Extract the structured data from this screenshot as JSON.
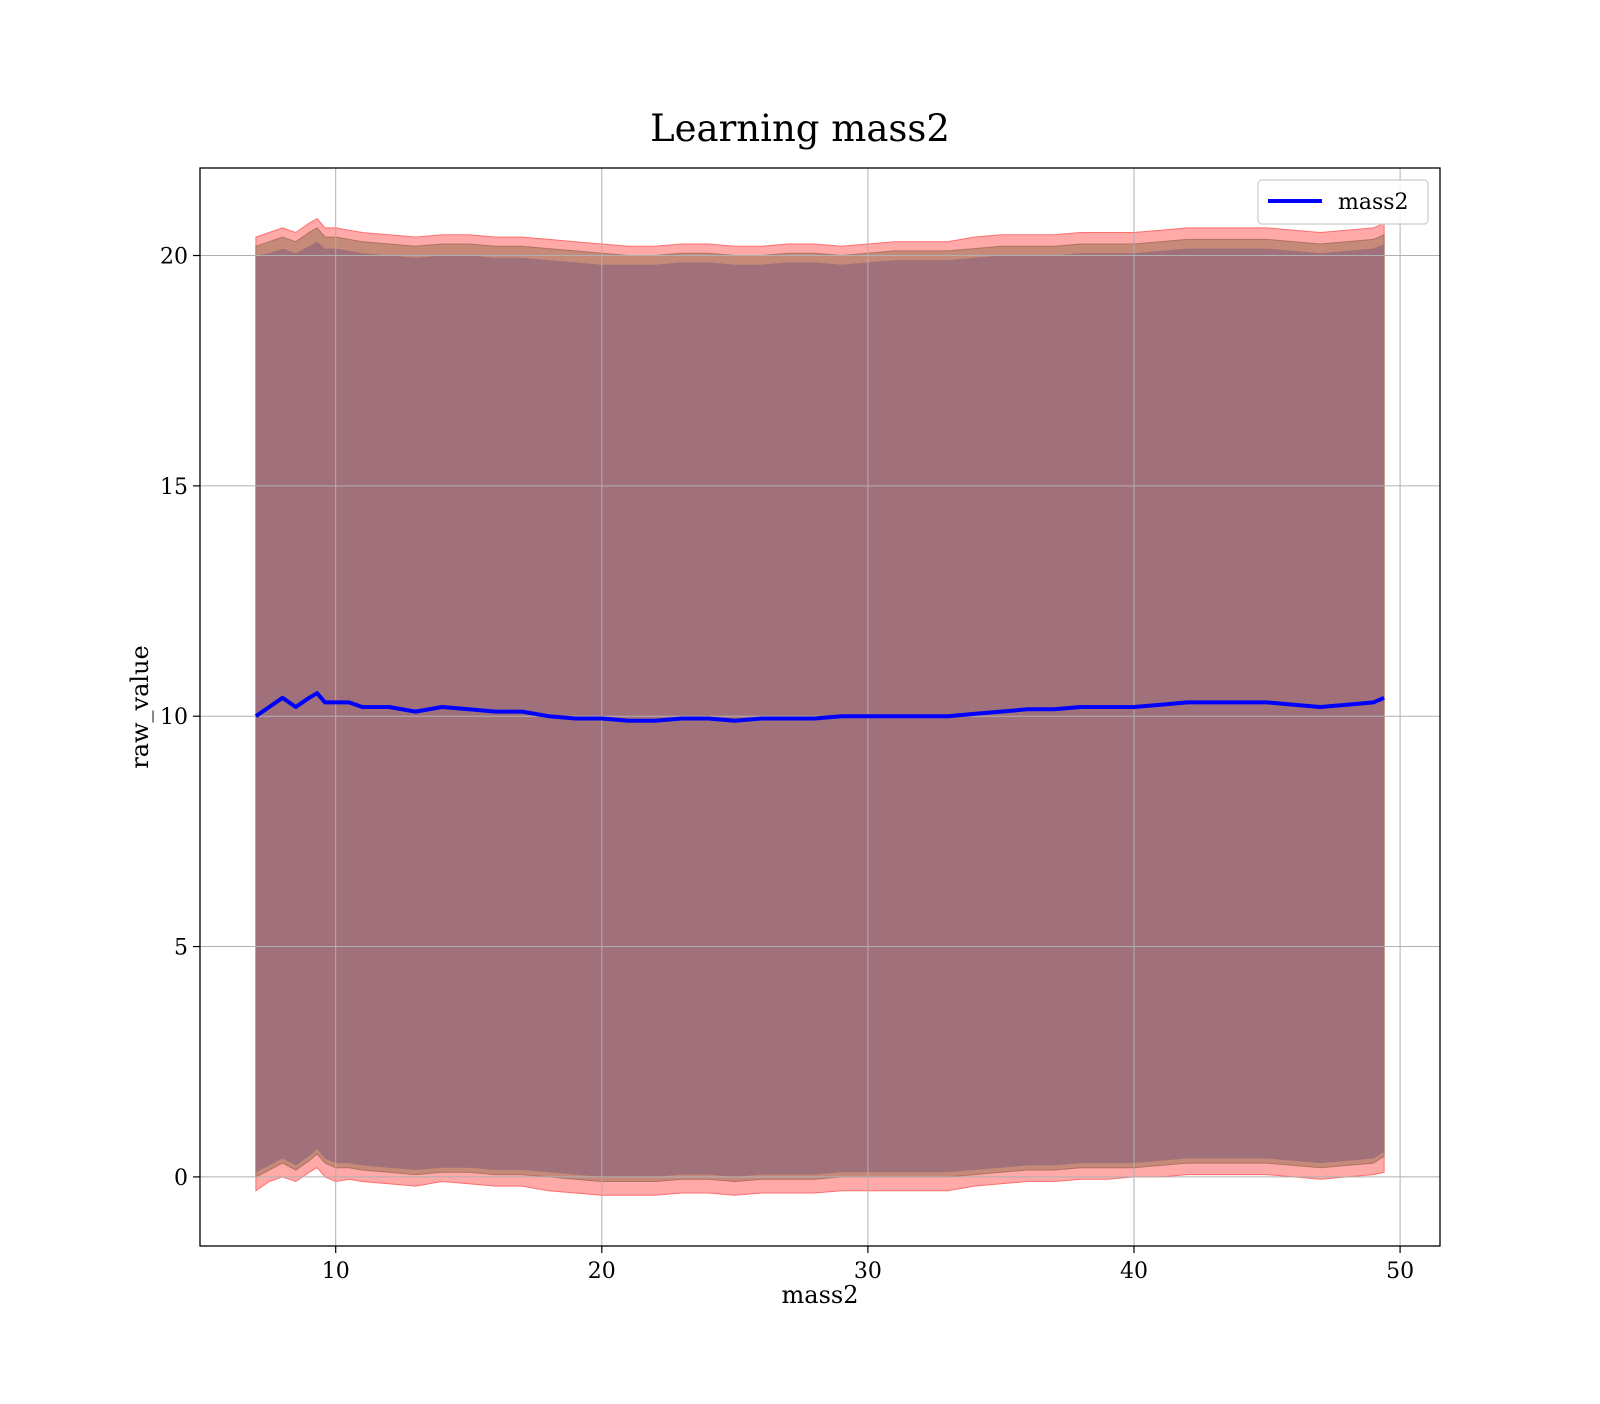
{
  "chart_data": {
    "type": "line",
    "title": "Learning mass2",
    "xlabel": "mass2",
    "ylabel": "raw_value",
    "xlim": [
      4.9,
      51.5
    ],
    "ylim": [
      -1.5,
      21.9
    ],
    "xticks": [
      10,
      20,
      30,
      40,
      50
    ],
    "yticks": [
      0,
      5,
      10,
      15,
      20
    ],
    "grid": true,
    "legend_position": "top-right",
    "colors": {
      "line": "#0000ff",
      "band_outer": "#ff9a9a",
      "band_mid": "#c58a78",
      "band_inner": "#a0717a",
      "grid": "#b0b0b0",
      "frame": "#000000"
    },
    "series": [
      {
        "name": "mass2",
        "x": [
          7.0,
          7.5,
          8.0,
          8.5,
          9.0,
          9.3,
          9.6,
          10.0,
          10.5,
          11.0,
          12.0,
          13.0,
          14.0,
          15.0,
          16.0,
          17.0,
          18.0,
          19.0,
          20.0,
          21.0,
          22.0,
          23.0,
          24.0,
          25.0,
          26.0,
          27.0,
          28.0,
          29.0,
          30.0,
          31.0,
          32.0,
          33.0,
          34.0,
          35.0,
          36.0,
          37.0,
          38.0,
          39.0,
          40.0,
          41.0,
          42.0,
          43.0,
          44.0,
          45.0,
          46.0,
          47.0,
          48.0,
          49.0,
          49.4
        ],
        "y": [
          10.0,
          10.2,
          10.4,
          10.2,
          10.4,
          10.5,
          10.3,
          10.3,
          10.3,
          10.2,
          10.2,
          10.1,
          10.2,
          10.15,
          10.1,
          10.1,
          10.0,
          9.95,
          9.95,
          9.9,
          9.9,
          9.95,
          9.95,
          9.9,
          9.95,
          9.95,
          9.95,
          10.0,
          10.0,
          10.0,
          10.0,
          10.0,
          10.05,
          10.1,
          10.15,
          10.15,
          10.2,
          10.2,
          10.2,
          10.25,
          10.3,
          10.3,
          10.3,
          10.3,
          10.25,
          10.2,
          10.25,
          10.3,
          10.4
        ],
        "band_outer_upper": [
          20.4,
          20.5,
          20.6,
          20.5,
          20.7,
          20.8,
          20.6,
          20.6,
          20.55,
          20.5,
          20.45,
          20.4,
          20.45,
          20.45,
          20.4,
          20.4,
          20.35,
          20.3,
          20.25,
          20.2,
          20.2,
          20.25,
          20.25,
          20.2,
          20.2,
          20.25,
          20.25,
          20.2,
          20.25,
          20.3,
          20.3,
          20.3,
          20.4,
          20.45,
          20.45,
          20.45,
          20.5,
          20.5,
          20.5,
          20.55,
          20.6,
          20.6,
          20.6,
          20.6,
          20.55,
          20.5,
          20.55,
          20.6,
          20.7
        ],
        "band_outer_lower": [
          -0.3,
          -0.1,
          0.0,
          -0.1,
          0.1,
          0.2,
          0.0,
          -0.1,
          -0.05,
          -0.1,
          -0.15,
          -0.2,
          -0.1,
          -0.15,
          -0.2,
          -0.2,
          -0.3,
          -0.35,
          -0.4,
          -0.4,
          -0.4,
          -0.35,
          -0.35,
          -0.4,
          -0.35,
          -0.35,
          -0.35,
          -0.3,
          -0.3,
          -0.3,
          -0.3,
          -0.3,
          -0.2,
          -0.15,
          -0.1,
          -0.1,
          -0.05,
          -0.05,
          0.0,
          0.0,
          0.05,
          0.05,
          0.05,
          0.05,
          0.0,
          -0.05,
          0.0,
          0.05,
          0.1
        ],
        "band_mid_upper": [
          20.2,
          20.3,
          20.4,
          20.3,
          20.5,
          20.6,
          20.4,
          20.4,
          20.35,
          20.3,
          20.25,
          20.2,
          20.25,
          20.25,
          20.2,
          20.2,
          20.15,
          20.1,
          20.05,
          20.0,
          20.0,
          20.05,
          20.05,
          20.0,
          20.0,
          20.05,
          20.05,
          20.0,
          20.05,
          20.1,
          20.1,
          20.1,
          20.15,
          20.2,
          20.2,
          20.2,
          20.25,
          20.25,
          20.25,
          20.3,
          20.35,
          20.35,
          20.35,
          20.35,
          20.3,
          20.25,
          20.3,
          20.35,
          20.45
        ],
        "band_mid_lower": [
          0.0,
          0.15,
          0.3,
          0.15,
          0.35,
          0.5,
          0.3,
          0.2,
          0.2,
          0.15,
          0.1,
          0.05,
          0.1,
          0.1,
          0.05,
          0.05,
          0.0,
          -0.05,
          -0.1,
          -0.1,
          -0.1,
          -0.05,
          -0.05,
          -0.1,
          -0.05,
          -0.05,
          -0.05,
          0.0,
          0.0,
          0.0,
          0.0,
          0.0,
          0.05,
          0.1,
          0.15,
          0.15,
          0.2,
          0.2,
          0.2,
          0.25,
          0.3,
          0.3,
          0.3,
          0.3,
          0.25,
          0.2,
          0.25,
          0.3,
          0.45
        ],
        "band_inner_upper": [
          20.0,
          20.05,
          20.15,
          20.05,
          20.2,
          20.3,
          20.15,
          20.15,
          20.1,
          20.05,
          20.0,
          19.95,
          20.0,
          20.0,
          19.95,
          19.95,
          19.9,
          19.85,
          19.8,
          19.8,
          19.8,
          19.85,
          19.85,
          19.8,
          19.8,
          19.85,
          19.85,
          19.8,
          19.85,
          19.9,
          19.9,
          19.9,
          19.95,
          20.0,
          20.0,
          20.0,
          20.05,
          20.05,
          20.05,
          20.1,
          20.15,
          20.15,
          20.15,
          20.15,
          20.1,
          20.05,
          20.1,
          20.15,
          20.25
        ],
        "band_inner_lower": [
          0.1,
          0.25,
          0.4,
          0.25,
          0.45,
          0.6,
          0.4,
          0.3,
          0.3,
          0.25,
          0.2,
          0.15,
          0.2,
          0.2,
          0.15,
          0.15,
          0.1,
          0.05,
          0.0,
          0.0,
          0.0,
          0.05,
          0.05,
          0.0,
          0.05,
          0.05,
          0.05,
          0.1,
          0.1,
          0.1,
          0.1,
          0.1,
          0.15,
          0.2,
          0.25,
          0.25,
          0.3,
          0.3,
          0.3,
          0.35,
          0.4,
          0.4,
          0.4,
          0.4,
          0.35,
          0.3,
          0.35,
          0.4,
          0.55
        ]
      }
    ]
  }
}
